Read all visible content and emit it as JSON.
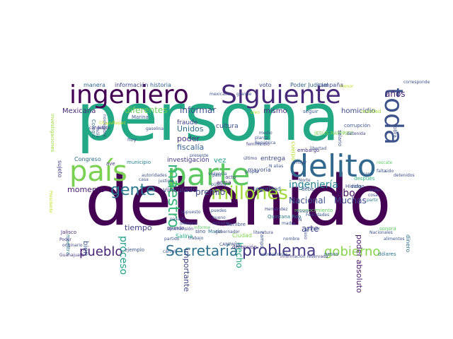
{
  "words": [
    {
      "text": "persona",
      "color": "#22a884"
    },
    {
      "text": "detenido",
      "color": "#440154"
    },
    {
      "text": "parte",
      "color": "#5ec962"
    },
    {
      "text": "ingeniero",
      "color": "#440154"
    },
    {
      "text": "Siguiente",
      "color": "#482878"
    },
    {
      "text": "toda",
      "color": "#3b528b"
    },
    {
      "text": "país",
      "color": "#7ad151"
    },
    {
      "text": "delito",
      "color": "#31688e"
    },
    {
      "text": "millones",
      "color": "#a0da39"
    },
    {
      "text": "gente",
      "color": "#2a788e"
    },
    {
      "text": "problema",
      "color": "#443983"
    },
    {
      "text": "pueblo",
      "color": "#482475"
    },
    {
      "text": "Secretaría",
      "color": "#2c728e"
    },
    {
      "text": "gobierno",
      "color": "#86d549"
    },
    {
      "text": "maestro",
      "color": "#35b779"
    },
    {
      "text": "ingeniería",
      "color": "#26828e"
    },
    {
      "text": "informar",
      "color": "#3b528b"
    },
    {
      "text": "diferentes",
      "color": "#6ccd5a"
    },
    {
      "text": "Mexicana",
      "color": "#472d7b"
    },
    {
      "text": "mismo",
      "color": "#46307e"
    },
    {
      "text": "homicidio",
      "color": "#3e4989"
    },
    {
      "text": "años",
      "color": "#482173"
    },
    {
      "text": "Muchas",
      "color": "#3e4a89"
    },
    {
      "text": "cabo",
      "color": "#471164"
    },
    {
      "text": "Nacional",
      "color": "#3b528b"
    },
    {
      "text": "poder absoluto",
      "color": "#481769"
    },
    {
      "text": "premio",
      "color": "#3d4d8a"
    },
    {
      "text": "tiempo",
      "color": "#424086"
    },
    {
      "text": "momento",
      "color": "#481a6c"
    },
    {
      "text": "bien",
      "color": "#3a548c"
    },
    {
      "text": "proceso",
      "color": "#1fa088"
    },
    {
      "text": "importante",
      "color": "#404588"
    },
    {
      "text": "hecho",
      "color": "#22a785"
    },
    {
      "text": "arte",
      "color": "#414287"
    },
    {
      "text": "vinculado",
      "color": "#3f4788"
    },
    {
      "text": "fiscalía",
      "color": "#35608d"
    },
    {
      "text": "poder",
      "color": "#46337f"
    },
    {
      "text": "Unidos",
      "color": "#2e6f8e"
    },
    {
      "text": "fraude",
      "color": "#404387"
    },
    {
      "text": "cultura",
      "color": "#3c4f8a"
    },
    {
      "text": "vez",
      "color": "#1f9a8a"
    },
    {
      "text": "investigación",
      "color": "#453781"
    },
    {
      "text": "entrega",
      "color": "#3e4989"
    },
    {
      "text": "seguridad",
      "color": "#31678e"
    },
    {
      "text": "arma",
      "color": "#482878"
    },
    {
      "text": "sujeto",
      "color": "#433e85"
    },
    {
      "text": "Congreso",
      "color": "#2f6c8e"
    },
    {
      "text": "información",
      "color": "#414487"
    },
    {
      "text": "historia",
      "color": "#34618d"
    },
    {
      "text": "manera",
      "color": "#31688e"
    },
    {
      "text": "voto",
      "color": "#3e4989"
    },
    {
      "text": "Poder Judicial",
      "color": "#35608d"
    },
    {
      "text": "campaña",
      "color": "#404588"
    },
    {
      "text": "Ciudad",
      "color": "#7fd34e"
    },
    {
      "text": "dinero",
      "color": "#2d708e"
    },
    {
      "text": "embargo",
      "color": "#472c7a"
    },
    {
      "text": "corrupción",
      "color": "#3b528b"
    },
    {
      "text": "seguir",
      "color": "#375b8d"
    },
    {
      "text": "mayoría",
      "color": "#3c4f8a"
    },
    {
      "text": "acto",
      "color": "#423f85"
    },
    {
      "text": "después",
      "color": "#34b679"
    },
    {
      "text": "vida",
      "color": "#31688e"
    },
    {
      "text": "hoy",
      "color": "#3b528b"
    },
    {
      "text": "municipio",
      "color": "#26818e"
    },
    {
      "text": "ave",
      "color": "#443a83"
    },
    {
      "text": "mundo",
      "color": "#3f4889"
    },
    {
      "text": "María",
      "color": "#2c728e"
    },
    {
      "text": "detención",
      "color": "#46327e"
    },
    {
      "text": "Jalisco",
      "color": "#482979"
    },
    {
      "text": "maestra",
      "color": "#2a778e"
    },
    {
      "text": "dólares",
      "color": "#2d718e"
    },
    {
      "text": "sonora",
      "color": "#5cc863"
    },
    {
      "text": "ejemplo",
      "color": "#3a538b"
    },
    {
      "text": "Guanajuato",
      "color": "#443983"
    },
    {
      "text": "originario",
      "color": "#3e4a89"
    },
    {
      "text": "pesos",
      "color": "#365c8d"
    },
    {
      "text": "asociaciones",
      "color": "#38598c"
    },
    {
      "text": "información reservada",
      "color": "#3f4889"
    },
    {
      "text": "reconocimiento",
      "color": "#5ec962"
    },
    {
      "text": "Colegio",
      "color": "#2e6e8e"
    },
    {
      "text": "creo",
      "color": "#c2df23"
    },
    {
      "text": "Marina",
      "color": "#3b528b"
    },
    {
      "text": "gasolina",
      "color": "#3d4e8a"
    },
    {
      "text": "candidato",
      "color": "#472f7d"
    },
    {
      "text": "Chapultepec",
      "color": "#c2df23"
    },
    {
      "text": "investigaciones",
      "color": "#9bd93c"
    },
    {
      "text": "sólo",
      "color": "#3b528b"
    },
    {
      "text": "menor",
      "color": "#c2df23"
    },
    {
      "text": "corresponde",
      "color": "#3b528b"
    },
    {
      "text": "realidad",
      "color": "#a5db36"
    },
    {
      "text": "obra",
      "color": "#3c508b"
    },
    {
      "text": "informe",
      "color": "#5ec962"
    },
    {
      "text": "Salina",
      "color": "#22a884"
    },
    {
      "text": "partido",
      "color": "#3b528b"
    },
    {
      "text": "Poder",
      "color": "#443a83"
    },
    {
      "text": "aprehensión",
      "color": "#414487"
    },
    {
      "text": "mano",
      "color": "#39568c"
    },
    {
      "text": "Hidalgo",
      "color": "#3e4a89"
    },
    {
      "text": "debe",
      "color": "#3b528b"
    },
    {
      "text": "cosa",
      "color": "#3e4a89"
    },
    {
      "text": "partir",
      "color": "#2a788e"
    },
    {
      "text": "Felicidades",
      "color": "#3b528b"
    },
    {
      "text": "último",
      "color": "#3f4889"
    },
    {
      "text": "JESÚS RAMÍREZ",
      "color": "#7ad151"
    },
    {
      "text": "cuerpo",
      "color": "#b5de2b"
    },
    {
      "text": "salario",
      "color": "#3b528b"
    },
    {
      "text": "detenida",
      "color": "#3e4989"
    },
    {
      "text": "feminicidio",
      "color": "#404588"
    },
    {
      "text": "hombre",
      "color": "#3b528b"
    },
    {
      "text": "sino",
      "color": "#3c508b"
    },
    {
      "text": "gobernador",
      "color": "#3e4a89"
    },
    {
      "text": "Quintana Roo",
      "color": "#2a788e"
    },
    {
      "text": "campo",
      "color": "#3b528b"
    },
    {
      "text": "literatura",
      "color": "#3f4889"
    },
    {
      "text": "madre",
      "color": "#3b528b"
    },
    {
      "text": "cinco",
      "color": "#3e4989"
    },
    {
      "text": "Hernández",
      "color": "#3f4889"
    },
    {
      "text": "Ñ",
      "color": "#3b528b"
    },
    {
      "text": "N alias",
      "color": "#3b528b"
    },
    {
      "text": "alimentos",
      "color": "#3b528b"
    },
    {
      "text": "primer",
      "color": "#3b528b"
    },
    {
      "text": "pública",
      "color": "#3b528b"
    },
    {
      "text": "ministro",
      "color": "#3b528b"
    },
    {
      "text": "supuesto",
      "color": "#3b528b"
    },
    {
      "text": "presente",
      "color": "#3b528b"
    },
    {
      "text": "medio",
      "color": "#3b528b"
    },
    {
      "text": "planta",
      "color": "#3b528b"
    },
    {
      "text": "República",
      "color": "#3b528b"
    },
    {
      "text": "justicia",
      "color": "#3b528b"
    },
    {
      "text": "grande",
      "color": "#3b528b"
    },
    {
      "text": "mexicano",
      "color": "#3b528b"
    },
    {
      "text": "jefe",
      "color": "#3b528b"
    },
    {
      "text": "casa",
      "color": "#3b528b"
    },
    {
      "text": "autoridades",
      "color": "#3b528b"
    },
    {
      "text": "siempre",
      "color": "#3b528b"
    },
    {
      "text": "cárcel",
      "color": "#3b528b"
    },
    {
      "text": "trabajo",
      "color": "#3b528b"
    },
    {
      "text": "noviembre",
      "color": "#3b528b"
    },
    {
      "text": "caso",
      "color": "#3b528b"
    },
    {
      "text": "Norte",
      "color": "#3b528b"
    },
    {
      "text": "orden",
      "color": "#3b528b"
    },
    {
      "text": "rescate",
      "color": "#5ec962"
    },
    {
      "text": "falta",
      "color": "#3b528b"
    },
    {
      "text": "sido",
      "color": "#3b528b"
    },
    {
      "text": "pasado",
      "color": "#3b528b"
    },
    {
      "text": "violencia",
      "color": "#3b528b"
    },
    {
      "text": "puedes",
      "color": "#3b528b"
    },
    {
      "text": "bueno",
      "color": "#3b528b"
    },
    {
      "text": "propia",
      "color": "#3b528b"
    },
    {
      "text": "nombre",
      "color": "#3b528b"
    },
    {
      "text": "mujer",
      "color": "#3b528b"
    },
    {
      "text": "país",
      "color": "#3b528b"
    },
    {
      "text": "libertad",
      "color": "#3b528b"
    },
    {
      "text": "detenidos",
      "color": "#3b528b"
    },
    {
      "text": "Presidente",
      "color": "#c2df23"
    },
    {
      "text": "Nacionales",
      "color": "#3b528b"
    },
    {
      "text": "CAMPAÑA",
      "color": "#3b528b"
    }
  ]
}
